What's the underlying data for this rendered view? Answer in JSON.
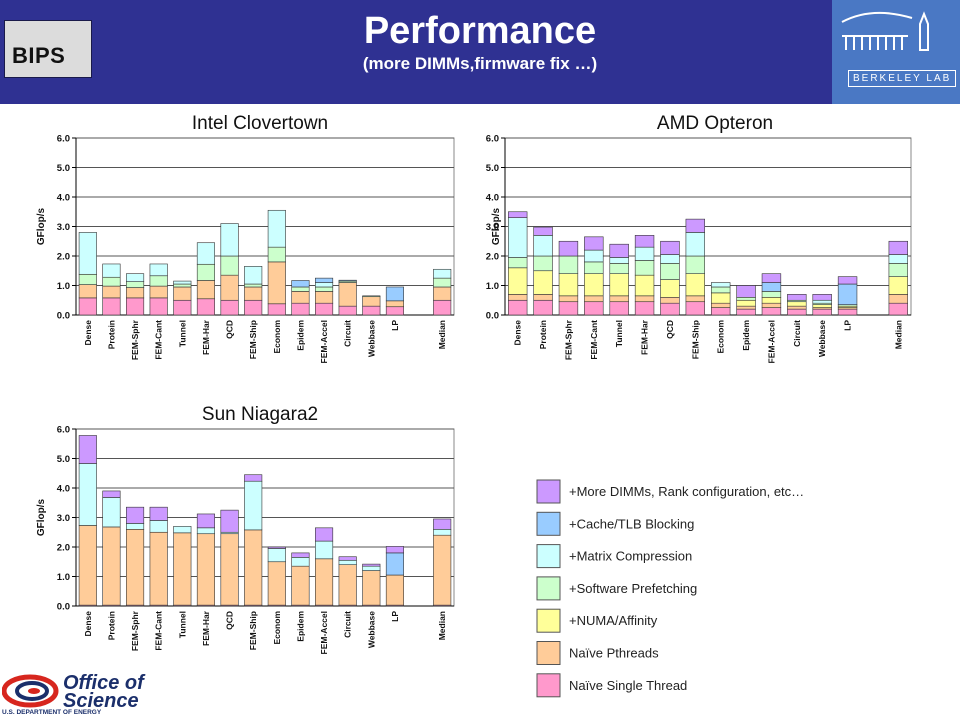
{
  "header": {
    "title": "Performance",
    "subtitle": "(more DIMMs,firmware fix …)",
    "bips_label": "BIPS",
    "lab_label": "BERKELEY LAB"
  },
  "footer": {
    "office_line1": "Office of",
    "office_line2": "Science",
    "department": "U.S. DEPARTMENT OF ENERGY"
  },
  "colors": {
    "header_bg": "#2f3192",
    "layers": [
      "#ff99cc",
      "#ffcc99",
      "#ffff99",
      "#ccffcc",
      "#ccffff",
      "#99ccff",
      "#cc99ff"
    ]
  },
  "legend": [
    {
      "label": "+More DIMMs, Rank configuration, etc…",
      "color": "#cc99ff"
    },
    {
      "label": "+Cache/TLB Blocking",
      "color": "#99ccff"
    },
    {
      "label": "+Matrix Compression",
      "color": "#ccffff"
    },
    {
      "label": "+Software Prefetching",
      "color": "#ccffcc"
    },
    {
      "label": "+NUMA/Affinity",
      "color": "#ffff99"
    },
    {
      "label": "Naïve Pthreads",
      "color": "#ffcc99"
    },
    {
      "label": "Naïve Single Thread",
      "color": "#ff99cc"
    }
  ],
  "chart_data": [
    {
      "type": "bar",
      "stacked": true,
      "title": "Intel Clovertown",
      "ylabel": "GFlop/s",
      "ylim": [
        0,
        6
      ],
      "yticks": [
        "0.0",
        "1.0",
        "2.0",
        "3.0",
        "4.0",
        "5.0",
        "6.0"
      ],
      "categories": [
        "Dense",
        "Protein",
        "FEM-Sphr",
        "FEM-Cant",
        "Tunnel",
        "FEM-Har",
        "QCD",
        "FEM-Ship",
        "Econom",
        "Epidem",
        "FEM-Accel",
        "Circuit",
        "Webbase",
        "LP",
        "Median"
      ],
      "gap_after": [
        13
      ],
      "layers": [
        "Naïve Single Thread",
        "Naïve Pthreads",
        "+NUMA/Affinity",
        "+Software Prefetching",
        "+Matrix Compression",
        "+Cache/TLB Blocking",
        "+More DIMMs, Rank configuration, etc…"
      ],
      "values": [
        [
          0.58,
          0.45,
          0.0,
          0.35,
          1.42,
          0.0,
          0.0
        ],
        [
          0.58,
          0.4,
          0.0,
          0.3,
          0.45,
          0.0,
          0.0
        ],
        [
          0.58,
          0.35,
          0.0,
          0.2,
          0.27,
          0.0,
          0.0
        ],
        [
          0.58,
          0.4,
          0.0,
          0.35,
          0.4,
          0.0,
          0.0
        ],
        [
          0.5,
          0.45,
          0.0,
          0.1,
          0.1,
          0.0,
          0.0
        ],
        [
          0.55,
          0.62,
          0.0,
          0.55,
          0.73,
          0.0,
          0.0
        ],
        [
          0.5,
          0.85,
          0.0,
          0.65,
          1.1,
          0.0,
          0.0
        ],
        [
          0.5,
          0.45,
          0.0,
          0.1,
          0.6,
          0.0,
          0.0
        ],
        [
          0.38,
          1.42,
          0.0,
          0.5,
          1.25,
          0.0,
          0.0
        ],
        [
          0.4,
          0.4,
          0.0,
          0.15,
          0.0,
          0.22,
          0.0
        ],
        [
          0.4,
          0.4,
          0.0,
          0.15,
          0.15,
          0.15,
          0.0
        ],
        [
          0.3,
          0.8,
          0.0,
          0.05,
          0.0,
          0.03,
          0.0
        ],
        [
          0.3,
          0.32,
          0.0,
          0.03,
          0.0,
          0.0,
          0.0
        ],
        [
          0.28,
          0.2,
          0.0,
          0.0,
          0.0,
          0.47,
          0.0
        ],
        [
          0.5,
          0.45,
          0.0,
          0.3,
          0.3,
          0.0,
          0.0
        ]
      ]
    },
    {
      "type": "bar",
      "stacked": true,
      "title": "AMD Opteron",
      "ylabel": "GFlop/s",
      "ylim": [
        0,
        6
      ],
      "yticks": [
        "0.0",
        "1.0",
        "2.0",
        "3.0",
        "4.0",
        "5.0",
        "6.0"
      ],
      "categories": [
        "Dense",
        "Protein",
        "FEM-Sphr",
        "FEM-Cant",
        "Tunnel",
        "FEM-Har",
        "QCD",
        "FEM-Ship",
        "Econom",
        "Epidem",
        "FEM-Accel",
        "Circuit",
        "Webbase",
        "LP",
        "Median"
      ],
      "gap_after": [
        13
      ],
      "layers": [
        "Naïve Single Thread",
        "Naïve Pthreads",
        "+NUMA/Affinity",
        "+Software Prefetching",
        "+Matrix Compression",
        "+Cache/TLB Blocking",
        "+More DIMMs, Rank configuration, etc…"
      ],
      "values": [
        [
          0.5,
          0.2,
          0.9,
          0.35,
          1.35,
          0.0,
          0.2
        ],
        [
          0.5,
          0.2,
          0.8,
          0.5,
          0.7,
          0.0,
          0.28
        ],
        [
          0.45,
          0.2,
          0.75,
          0.6,
          0.0,
          0.0,
          0.5
        ],
        [
          0.45,
          0.2,
          0.75,
          0.4,
          0.4,
          0.0,
          0.45
        ],
        [
          0.45,
          0.2,
          0.75,
          0.35,
          0.2,
          0.0,
          0.45
        ],
        [
          0.45,
          0.2,
          0.7,
          0.5,
          0.45,
          0.0,
          0.4
        ],
        [
          0.4,
          0.2,
          0.6,
          0.55,
          0.3,
          0.0,
          0.45
        ],
        [
          0.45,
          0.2,
          0.75,
          0.6,
          0.8,
          0.0,
          0.45
        ],
        [
          0.25,
          0.15,
          0.35,
          0.2,
          0.15,
          0.0,
          0.0
        ],
        [
          0.2,
          0.1,
          0.2,
          0.1,
          0.0,
          0.0,
          0.4
        ],
        [
          0.25,
          0.15,
          0.2,
          0.2,
          0.0,
          0.3,
          0.3
        ],
        [
          0.2,
          0.1,
          0.15,
          0.05,
          0.0,
          0.0,
          0.2
        ],
        [
          0.2,
          0.05,
          0.1,
          0.05,
          0.1,
          0.0,
          0.2
        ],
        [
          0.2,
          0.05,
          0.05,
          0.05,
          0.0,
          0.7,
          0.25
        ],
        [
          0.4,
          0.3,
          0.6,
          0.45,
          0.3,
          0.0,
          0.45
        ]
      ]
    },
    {
      "type": "bar",
      "stacked": true,
      "title": "Sun Niagara2",
      "ylabel": "GFlop/s",
      "ylim": [
        0,
        6
      ],
      "yticks": [
        "0.0",
        "1.0",
        "2.0",
        "3.0",
        "4.0",
        "5.0",
        "6.0"
      ],
      "categories": [
        "Dense",
        "Protein",
        "FEM-Sphr",
        "FEM-Cant",
        "Tunnel",
        "FEM-Har",
        "QCD",
        "FEM-Ship",
        "Econom",
        "Epidem",
        "FEM-Accel",
        "Circuit",
        "Webbase",
        "LP",
        "Median"
      ],
      "gap_after": [
        13
      ],
      "layers": [
        "Naïve Single Thread",
        "Naïve Pthreads",
        "+NUMA/Affinity",
        "+Software Prefetching",
        "+Matrix Compression",
        "+Cache/TLB Blocking",
        "+More DIMMs, Rank configuration, etc…"
      ],
      "values": [
        [
          0.03,
          2.7,
          0.0,
          0.0,
          2.1,
          0.0,
          0.95
        ],
        [
          0.03,
          2.65,
          0.0,
          0.0,
          1.0,
          0.0,
          0.22
        ],
        [
          0.03,
          2.57,
          0.0,
          0.0,
          0.2,
          0.0,
          0.55
        ],
        [
          0.03,
          2.47,
          0.0,
          0.0,
          0.4,
          0.0,
          0.45
        ],
        [
          0.03,
          2.45,
          0.0,
          0.0,
          0.22,
          0.0,
          0.0
        ],
        [
          0.03,
          2.42,
          0.0,
          0.0,
          0.2,
          0.0,
          0.47
        ],
        [
          0.03,
          2.42,
          0.0,
          0.0,
          0.05,
          0.0,
          0.75
        ],
        [
          0.03,
          2.55,
          0.0,
          0.0,
          1.65,
          0.0,
          0.22
        ],
        [
          0.03,
          1.47,
          0.0,
          0.0,
          0.45,
          0.0,
          0.05
        ],
        [
          0.03,
          1.32,
          0.0,
          0.0,
          0.3,
          0.0,
          0.15
        ],
        [
          0.03,
          1.57,
          0.0,
          0.0,
          0.6,
          0.0,
          0.45
        ],
        [
          0.03,
          1.37,
          0.0,
          0.0,
          0.15,
          0.0,
          0.12
        ],
        [
          0.03,
          1.17,
          0.0,
          0.0,
          0.15,
          0.0,
          0.07
        ],
        [
          0.03,
          1.02,
          0.0,
          0.0,
          0.0,
          0.75,
          0.22
        ],
        [
          0.03,
          2.37,
          0.0,
          0.0,
          0.2,
          0.0,
          0.35
        ]
      ]
    }
  ]
}
